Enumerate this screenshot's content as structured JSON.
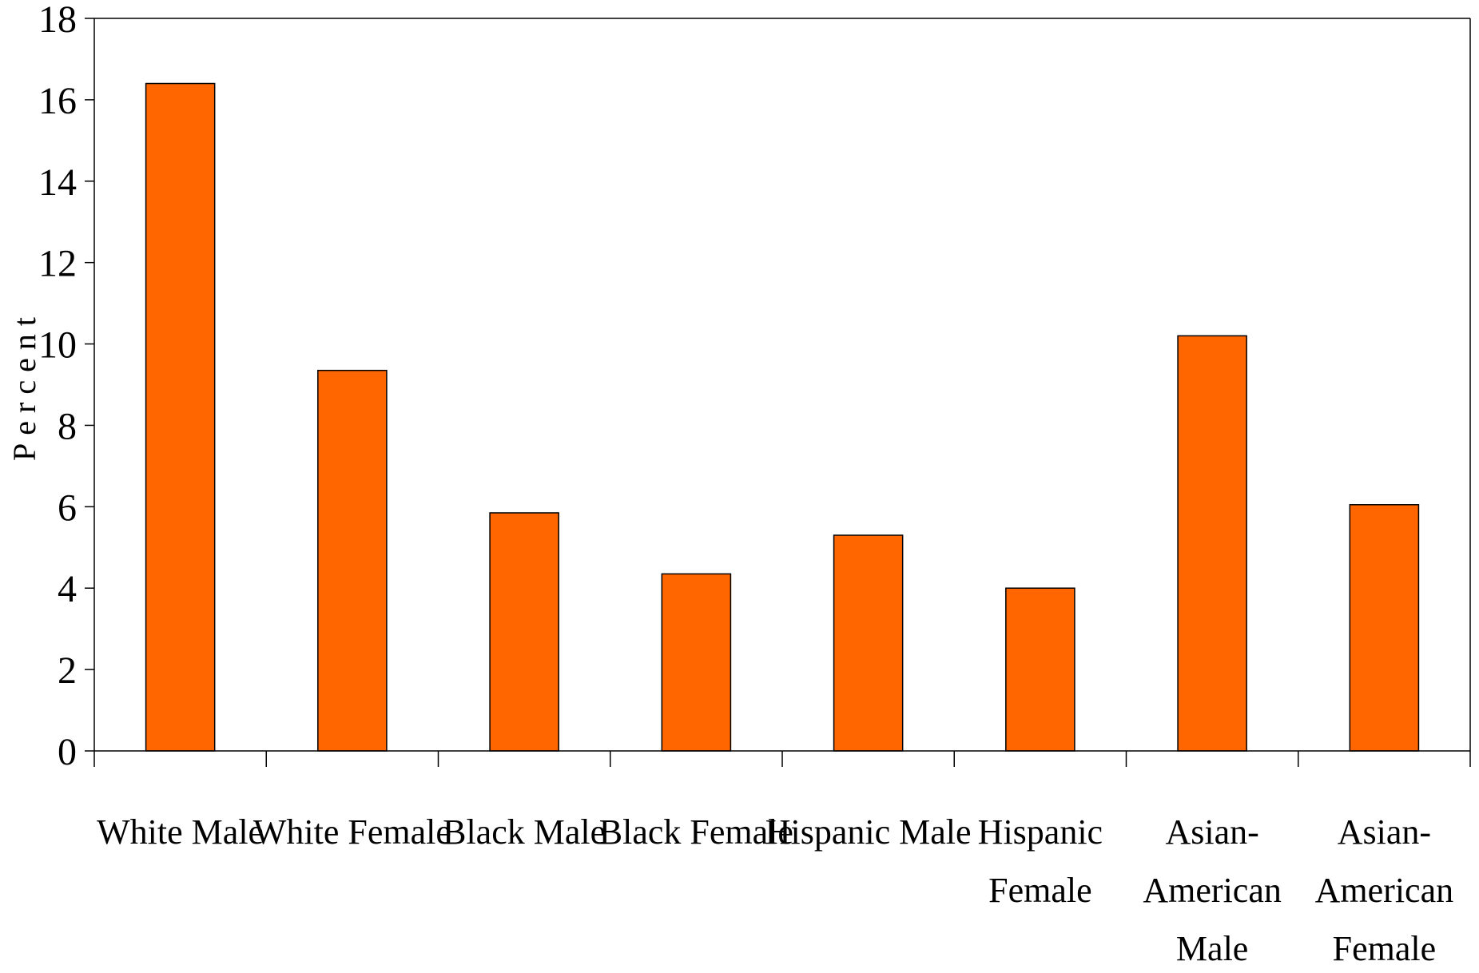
{
  "chart_data": {
    "type": "bar",
    "categories": [
      [
        "White Male"
      ],
      [
        "White Female"
      ],
      [
        "Black Male"
      ],
      [
        "Black Female"
      ],
      [
        "Hispanic Male"
      ],
      [
        "Hispanic",
        "Female"
      ],
      [
        "Asian-",
        "American",
        "Male"
      ],
      [
        "Asian-",
        "American",
        "Female"
      ]
    ],
    "values": [
      16.4,
      9.35,
      5.85,
      4.35,
      5.3,
      4.0,
      10.2,
      6.05
    ],
    "title": "",
    "xlabel": "",
    "ylabel": "Percent",
    "ylim": [
      0,
      18
    ],
    "yticks": [
      0,
      2,
      4,
      6,
      8,
      10,
      12,
      14,
      16,
      18
    ],
    "bar_color": "#FF6600",
    "grid": false,
    "legend": "none"
  }
}
